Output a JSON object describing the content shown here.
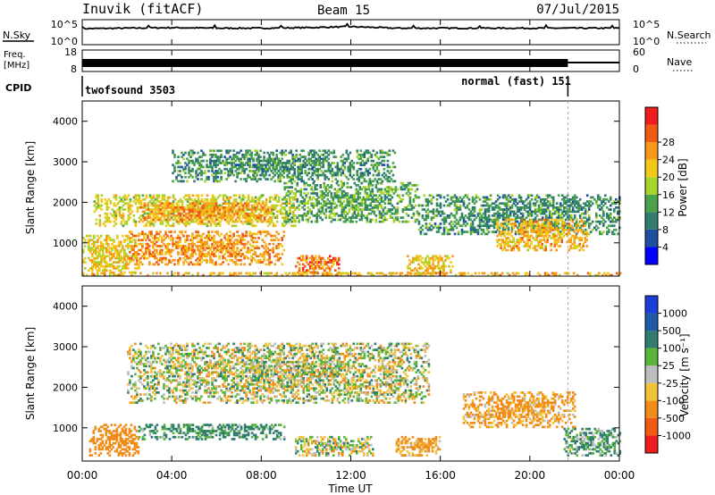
{
  "header": {
    "station": "Inuvik",
    "fit": "(fitACF)",
    "beam": "Beam 15",
    "date": "07/Jul/2015"
  },
  "noise_panel": {
    "left_label": "N.Sky",
    "left_ticks": [
      "10^5",
      "10^0"
    ],
    "right_ticks": [
      "10^5",
      "10^0"
    ],
    "right_label": "N.Search"
  },
  "freq_panel": {
    "left_label_1": "Freq.",
    "left_label_2": "[MHz]",
    "left_ticks": [
      "18",
      "8"
    ],
    "right_ticks": [
      "60",
      "0"
    ],
    "right_label": "Nave"
  },
  "cpid": {
    "label": "CPID",
    "mode_1": "twofsound 3503",
    "mode_2": "normal (fast) 151",
    "switch_time_hours": 21.7
  },
  "time_axis": {
    "title": "Time UT",
    "ticks": [
      "00:00",
      "04:00",
      "08:00",
      "12:00",
      "16:00",
      "20:00",
      "00:00"
    ]
  },
  "power_panel": {
    "ylabel": "Slant Range [km]",
    "yticks": [
      "1000",
      "2000",
      "3000",
      "4000"
    ],
    "cbar_title": "Power [dB]",
    "cbar_labels": [
      "4",
      "8",
      "12",
      "16",
      "20",
      "24",
      "28"
    ],
    "cbar_colors": [
      "#0000ff",
      "#1e4fa0",
      "#2e7d6e",
      "#4aa24a",
      "#a8d42a",
      "#f2c91a",
      "#f79a1a",
      "#f05a14",
      "#ee1c1c"
    ]
  },
  "velocity_panel": {
    "ylabel": "Slant Range [km]",
    "yticks": [
      "1000",
      "2000",
      "3000",
      "4000"
    ],
    "cbar_title": "Velocity [m s⁻¹]",
    "cbar_labels": [
      "1000",
      "500",
      "100",
      "25",
      "-25",
      "-100",
      "-500",
      "-1000"
    ],
    "cbar_colors": [
      "#1b3fd6",
      "#1e5aa8",
      "#2e7d6e",
      "#5ab63a",
      "#bdbdbd",
      "#f2c23a",
      "#f08c1a",
      "#f05a14",
      "#ee1c1c"
    ]
  },
  "chart_data": [
    {
      "type": "line",
      "title": "N.Sky / N.Search",
      "x_units": "hours UT",
      "x": [
        0,
        2,
        4,
        6,
        8,
        10,
        12,
        14,
        16,
        18,
        20,
        22,
        24
      ],
      "series": [
        {
          "name": "N.Sky",
          "values": [
            3.2,
            3.3,
            3.4,
            3.3,
            3.3,
            3.4,
            3.6,
            3.3,
            3.3,
            3.3,
            3.3,
            3.3,
            3.3
          ]
        }
      ],
      "ylim": [
        0,
        5
      ],
      "ylabel": "log10 noise"
    },
    {
      "type": "line",
      "title": "Freq. / Nave",
      "x_units": "hours UT",
      "x": [
        0,
        4,
        8,
        12,
        16,
        20,
        21.7,
        24
      ],
      "series": [
        {
          "name": "Freq. [MHz]",
          "values": [
            11,
            11,
            11,
            11,
            11,
            11,
            11,
            11
          ]
        },
        {
          "name": "Nave",
          "values": [
            20,
            20,
            20,
            20,
            20,
            20,
            20,
            20
          ]
        }
      ],
      "ylim": [
        8,
        18
      ]
    },
    {
      "type": "heatmap",
      "title": "Power [dB]",
      "xlabel": "Time UT",
      "ylabel": "Slant Range [km]",
      "xlim": [
        0,
        24
      ],
      "ylim": [
        180,
        4500
      ],
      "regions": [
        {
          "t0": 0.5,
          "t1": 9.5,
          "r0": 1400,
          "r1": 2200,
          "power": 20
        },
        {
          "t0": 2.5,
          "t1": 8.5,
          "r0": 1500,
          "r1": 2000,
          "power": 26
        },
        {
          "t0": 0.0,
          "t1": 2.5,
          "r0": 200,
          "r1": 1200,
          "power": 22
        },
        {
          "t0": 2.0,
          "t1": 9.0,
          "r0": 450,
          "r1": 1300,
          "power": 26
        },
        {
          "t0": 9.5,
          "t1": 11.5,
          "r0": 200,
          "r1": 700,
          "power": 28
        },
        {
          "t0": 9.0,
          "t1": 15.0,
          "r0": 1500,
          "r1": 2500,
          "power": 14
        },
        {
          "t0": 15.0,
          "t1": 24.0,
          "r0": 1200,
          "r1": 2200,
          "power": 12
        },
        {
          "t0": 18.5,
          "t1": 22.5,
          "r0": 800,
          "r1": 1600,
          "power": 24
        },
        {
          "t0": 14.5,
          "t1": 16.5,
          "r0": 200,
          "r1": 700,
          "power": 22
        },
        {
          "t0": 4.0,
          "t1": 14.0,
          "r0": 2500,
          "r1": 3300,
          "power": 12
        },
        {
          "t0": 0.0,
          "t1": 24.0,
          "r0": 180,
          "r1": 260,
          "power": 24
        }
      ]
    },
    {
      "type": "heatmap",
      "title": "Velocity [m s⁻¹]",
      "xlabel": "Time UT",
      "ylabel": "Slant Range [km]",
      "xlim": [
        0,
        24
      ],
      "ylim": [
        180,
        4500
      ],
      "regions": [
        {
          "t0": 2.0,
          "t1": 15.5,
          "r0": 1600,
          "r1": 3100,
          "velocity": 0
        },
        {
          "t0": 2.5,
          "t1": 9.0,
          "r0": 700,
          "r1": 1100,
          "velocity": 150
        },
        {
          "t0": 0.3,
          "t1": 2.5,
          "r0": 300,
          "r1": 1100,
          "velocity": -300
        },
        {
          "t0": 9.5,
          "t1": 13.0,
          "r0": 300,
          "r1": 800,
          "velocity": 0
        },
        {
          "t0": 17.0,
          "t1": 22.0,
          "r0": 1000,
          "r1": 1900,
          "velocity": -150
        },
        {
          "t0": 14.0,
          "t1": 16.0,
          "r0": 300,
          "r1": 800,
          "velocity": -150
        },
        {
          "t0": 21.5,
          "t1": 24.0,
          "r0": 300,
          "r1": 1000,
          "velocity": 120
        }
      ]
    }
  ]
}
